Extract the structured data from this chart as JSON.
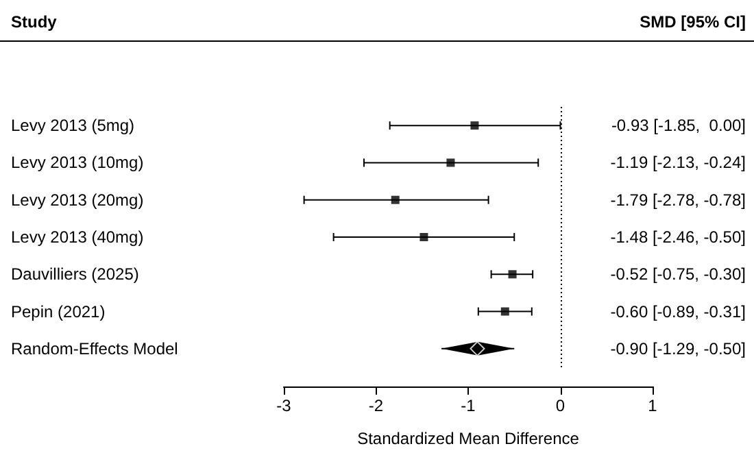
{
  "chart_data": {
    "type": "scatter",
    "orientation": "horizontal",
    "categories": [
      "Levy 2013 (5mg)",
      "Levy 2013 (10mg)",
      "Levy 2013 (20mg)",
      "Levy 2013 (40mg)",
      "Dauvilliers (2025)",
      "Pepin (2021)",
      "Random-Effects Model"
    ],
    "xlabel": "Standardized Mean Difference",
    "xlim": [
      -3,
      1
    ],
    "xticks": [
      -3,
      -2,
      -1,
      0,
      1
    ],
    "grid": false,
    "annotations": [
      "Study",
      "SMD [95% CI]",
      "-0.90 [-1.29, -0.50]"
    ],
    "ref_lines": [
      {
        "axis": "x",
        "value": 0,
        "line_style": "dotted",
        "color": "#000000"
      }
    ],
    "series": [
      {
        "color": "#000000",
        "marker": "square",
        "values": [
          -0.93,
          -1.19,
          -1.79,
          -1.48,
          -0.52,
          -0.6,
          null
        ],
        "errors": [
          [
            -1.85,
            0.0
          ],
          [
            -2.13,
            -0.24
          ],
          [
            -2.78,
            -0.78
          ],
          [
            -2.46,
            -0.5
          ],
          [
            -0.75,
            -0.3
          ],
          [
            -0.89,
            -0.31
          ],
          null
        ],
        "value_labels": [
          "-0.93 [-1.85,  0.00]",
          "-1.19 [-2.13, -0.24]",
          "-1.79 [-2.78, -0.78]",
          "-1.48 [-2.46, -0.50]",
          "-0.52 [-0.75, -0.30]",
          "-0.60 [-0.89, -0.31]",
          null
        ]
      },
      {
        "color": "#000000",
        "marker": "diamond",
        "values": [
          null,
          null,
          null,
          null,
          null,
          null,
          -0.9
        ],
        "errors": [
          null,
          null,
          null,
          null,
          null,
          null,
          [
            -1.29,
            -0.5
          ]
        ]
      }
    ]
  }
}
